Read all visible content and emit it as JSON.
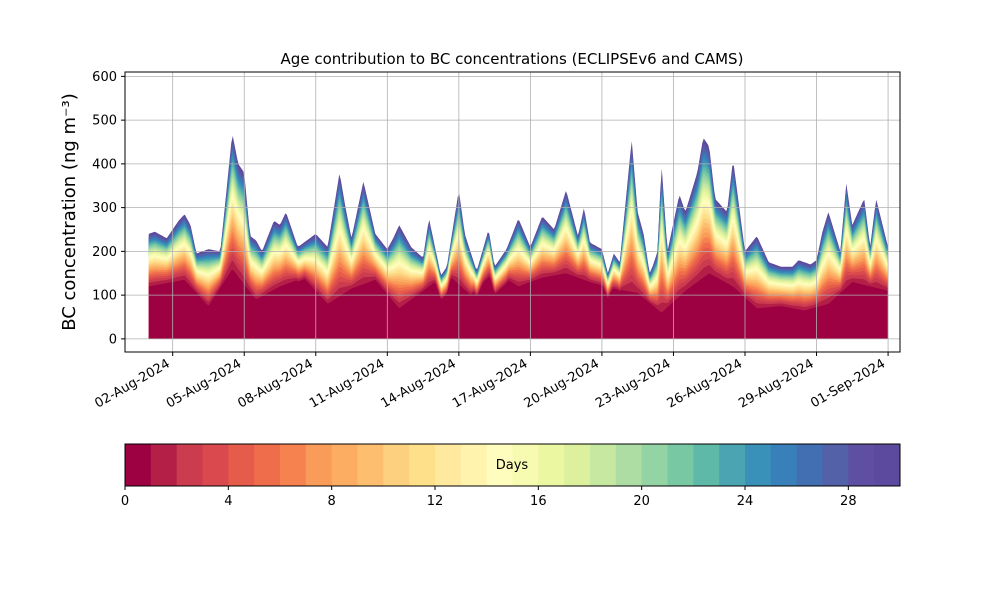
{
  "chart_data": {
    "type": "area",
    "title": "Age contribution to BC concentrations (ECLIPSEv6 and CAMS)",
    "ylabel": "BC concentration (ng m⁻³)",
    "xlabel": "",
    "ylim": [
      -30,
      610
    ],
    "xlim": [
      "2024-07-31T00:00",
      "2024-09-01T12:00"
    ],
    "grid": true,
    "stacked": true,
    "layers": 30,
    "y_ticks": [
      0,
      100,
      200,
      300,
      400,
      500,
      600
    ],
    "x_ticks": [
      "02-Aug-2024",
      "05-Aug-2024",
      "08-Aug-2024",
      "11-Aug-2024",
      "14-Aug-2024",
      "17-Aug-2024",
      "20-Aug-2024",
      "23-Aug-2024",
      "26-Aug-2024",
      "29-Aug-2024",
      "01-Sep-2024"
    ],
    "series": [
      {
        "role": "total",
        "x": [
          "2024-08-01T00:00",
          "2024-08-01T06:00",
          "2024-08-01T18:00",
          "2024-08-02T06:00",
          "2024-08-02T12:00",
          "2024-08-02T18:00",
          "2024-08-03T00:00",
          "2024-08-03T12:00",
          "2024-08-04T00:00",
          "2024-08-04T12:00",
          "2024-08-04T18:00",
          "2024-08-05T00:00",
          "2024-08-05T06:00",
          "2024-08-05T12:00",
          "2024-08-05T18:00",
          "2024-08-06T06:00",
          "2024-08-06T12:00",
          "2024-08-06T18:00",
          "2024-08-07T06:00",
          "2024-08-07T18:00",
          "2024-08-08T00:00",
          "2024-08-08T12:00",
          "2024-08-09T00:00",
          "2024-08-09T06:00",
          "2024-08-09T12:00",
          "2024-08-10T00:00",
          "2024-08-10T12:00",
          "2024-08-11T00:00",
          "2024-08-11T06:00",
          "2024-08-11T12:00",
          "2024-08-12T00:00",
          "2024-08-12T12:00",
          "2024-08-12T18:00",
          "2024-08-13T06:00",
          "2024-08-13T12:00",
          "2024-08-14T00:00",
          "2024-08-14T06:00",
          "2024-08-14T18:00",
          "2024-08-15T06:00",
          "2024-08-15T12:00",
          "2024-08-16T00:00",
          "2024-08-16T12:00",
          "2024-08-17T00:00",
          "2024-08-17T12:00",
          "2024-08-18T00:00",
          "2024-08-18T12:00",
          "2024-08-19T00:00",
          "2024-08-19T06:00",
          "2024-08-19T12:00",
          "2024-08-20T00:00",
          "2024-08-20T06:00",
          "2024-08-20T12:00",
          "2024-08-20T18:00",
          "2024-08-21T06:00",
          "2024-08-21T12:00",
          "2024-08-21T18:00",
          "2024-08-22T00:00",
          "2024-08-22T03:00",
          "2024-08-22T08:00",
          "2024-08-22T12:00",
          "2024-08-22T18:00",
          "2024-08-23T00:00",
          "2024-08-23T06:00",
          "2024-08-23T12:00",
          "2024-08-24T00:00",
          "2024-08-24T06:00",
          "2024-08-24T12:00",
          "2024-08-24T18:00",
          "2024-08-25T06:00",
          "2024-08-25T12:00",
          "2024-08-26T00:00",
          "2024-08-26T12:00",
          "2024-08-27T00:00",
          "2024-08-27T12:00",
          "2024-08-28T00:00",
          "2024-08-28T06:00",
          "2024-08-28T18:00",
          "2024-08-29T00:00",
          "2024-08-29T06:00",
          "2024-08-29T12:00",
          "2024-08-30T00:00",
          "2024-08-30T06:00",
          "2024-08-30T12:00",
          "2024-08-31T00:00",
          "2024-08-31T06:00",
          "2024-08-31T12:00",
          "2024-09-01T00:00"
        ],
        "y": [
          240,
          245,
          230,
          270,
          285,
          260,
          195,
          205,
          200,
          470,
          400,
          380,
          235,
          225,
          200,
          270,
          260,
          290,
          210,
          230,
          240,
          210,
          380,
          300,
          230,
          360,
          240,
          205,
          230,
          260,
          210,
          185,
          275,
          145,
          165,
          340,
          240,
          155,
          250,
          165,
          205,
          275,
          210,
          280,
          250,
          340,
          235,
          300,
          220,
          205,
          150,
          195,
          175,
          455,
          290,
          240,
          150,
          165,
          200,
          400,
          200,
          265,
          330,
          290,
          380,
          460,
          440,
          320,
          290,
          410,
          200,
          235,
          175,
          165,
          165,
          180,
          170,
          180,
          245,
          290,
          200,
          355,
          260,
          320,
          210,
          320,
          210
        ]
      },
      {
        "role": "fresh-0-1-day",
        "x": [
          "2024-08-01T00:00",
          "2024-08-02T12:00",
          "2024-08-03T12:00",
          "2024-08-04T12:00",
          "2024-08-05T12:00",
          "2024-08-06T12:00",
          "2024-08-07T12:00",
          "2024-08-08T12:00",
          "2024-08-09T12:00",
          "2024-08-10T12:00",
          "2024-08-11T12:00",
          "2024-08-12T12:00",
          "2024-08-13T12:00",
          "2024-08-14T12:00",
          "2024-08-15T12:00",
          "2024-08-16T12:00",
          "2024-08-17T12:00",
          "2024-08-18T12:00",
          "2024-08-19T12:00",
          "2024-08-20T12:00",
          "2024-08-21T12:00",
          "2024-08-22T12:00",
          "2024-08-23T12:00",
          "2024-08-24T12:00",
          "2024-08-25T12:00",
          "2024-08-26T12:00",
          "2024-08-27T12:00",
          "2024-08-28T12:00",
          "2024-08-29T12:00",
          "2024-08-30T12:00",
          "2024-09-01T00:00"
        ],
        "y": [
          120,
          135,
          75,
          160,
          90,
          120,
          140,
          80,
          115,
          135,
          70,
          110,
          150,
          100,
          155,
          120,
          140,
          150,
          130,
          115,
          105,
          60,
          110,
          150,
          120,
          70,
          75,
          65,
          80,
          130,
          110
        ]
      }
    ],
    "colorbar": {
      "label": "Days",
      "min": 0,
      "max": 30,
      "ticks": [
        0,
        4,
        8,
        12,
        16,
        20,
        24,
        28
      ],
      "colors": [
        "#9e0142",
        "#b41f48",
        "#ca3c4e",
        "#d9494e",
        "#e55c4a",
        "#ef6d4a",
        "#f6834f",
        "#f99b59",
        "#fcad62",
        "#fdbe6f",
        "#fdd080",
        "#fee08b",
        "#fee99e",
        "#fff3ae",
        "#fffdbe",
        "#f7fbb1",
        "#ecf7a2",
        "#dcf09e",
        "#c6e8a0",
        "#addda2",
        "#94d3a4",
        "#79c8a4",
        "#5fb9a8",
        "#4aa4b1",
        "#3990b8",
        "#3880b9",
        "#426eb2",
        "#5361a9",
        "#5e4fa2",
        "#5b4a9d"
      ]
    }
  }
}
